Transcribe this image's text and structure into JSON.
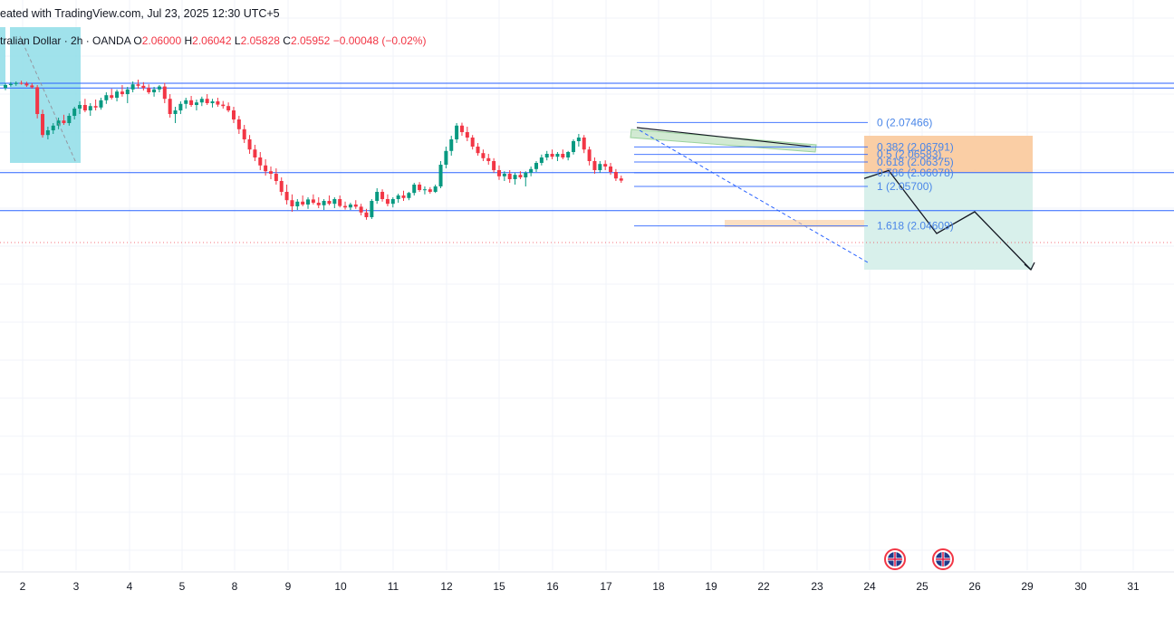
{
  "header": {
    "attribution": "eated with TradingView.com, Jul 23, 2025 12:30 UTC+5"
  },
  "legend": {
    "symbol": "tralian Dollar · 2h · OANDA",
    "open_label": "O",
    "open_value": "2.06000",
    "high_label": "H",
    "high_value": "2.06042",
    "low_label": "L",
    "low_value": "2.05828",
    "close_label": "C",
    "close_value": "2.05952",
    "change": "−0.00048 (−0.02%)"
  },
  "colors": {
    "up": "#089981",
    "down": "#f23645",
    "level_line": "#2962ff",
    "fib_text": "#4a86e8",
    "target_zone": "#d6efea",
    "stop_zone": "#f9c99b",
    "left_box": "#8fdde8"
  },
  "chart_data": {
    "type": "candlestick",
    "x_tick_labels": [
      "2",
      "3",
      "4",
      "5",
      "8",
      "9",
      "10",
      "11",
      "12",
      "15",
      "16",
      "17",
      "18",
      "19",
      "22",
      "23",
      "24",
      "25",
      "26",
      "29",
      "30",
      "31"
    ],
    "horizontal_levels": [
      2.0855,
      2.0842,
      2.0608,
      2.0503
    ],
    "fib_levels": [
      {
        "ratio": "0",
        "price": 2.07466,
        "label": "0 (2.07466)"
      },
      {
        "ratio": "0.382",
        "price": 2.06791,
        "label": "0.382 (2.06791)"
      },
      {
        "ratio": "0.5",
        "price": 2.06583,
        "label": "0.5 (2.06583)"
      },
      {
        "ratio": "0.618",
        "price": 2.06375,
        "label": "0.618 (2.06375)"
      },
      {
        "ratio": "0.786",
        "price": 2.06078,
        "label": "0.786 (2.06078)"
      },
      {
        "ratio": "1",
        "price": 2.057,
        "label": "1 (2.05700)"
      },
      {
        "ratio": "1.618",
        "price": 2.04609,
        "label": "1.618 (2.04609)"
      }
    ],
    "position_tool": {
      "type": "short",
      "entry": 2.0608,
      "stop": 2.071,
      "target": 2.034
    },
    "projection_path": [
      {
        "day": "23",
        "price": 2.0592
      },
      {
        "day": "24",
        "price": 2.0614
      },
      {
        "day": "25",
        "price": 2.044
      },
      {
        "day": "26",
        "price": 2.05
      },
      {
        "day": "29",
        "price": 2.034
      }
    ],
    "event_markers": [
      {
        "day": "24",
        "flag": "UK"
      },
      {
        "day": "25",
        "flag": "UK"
      }
    ],
    "candles": [
      [
        2.0842,
        2.0855,
        2.0836,
        2.085
      ],
      [
        2.085,
        2.0858,
        2.0846,
        2.0853
      ],
      [
        2.0853,
        2.086,
        2.0848,
        2.0856
      ],
      [
        2.0856,
        2.0862,
        2.0851,
        2.0854
      ],
      [
        2.0854,
        2.0859,
        2.0845,
        2.0849
      ],
      [
        2.0849,
        2.0855,
        2.084,
        2.0844
      ],
      [
        2.0844,
        2.085,
        2.0758,
        2.077
      ],
      [
        2.077,
        2.0782,
        2.0705,
        2.0712
      ],
      [
        2.0712,
        2.0735,
        2.07,
        2.0725
      ],
      [
        2.0725,
        2.0745,
        2.0715,
        2.0738
      ],
      [
        2.0738,
        2.076,
        2.0728,
        2.0752
      ],
      [
        2.0752,
        2.0768,
        2.074,
        2.0745
      ],
      [
        2.0745,
        2.0772,
        2.0738,
        2.0765
      ],
      [
        2.0765,
        2.079,
        2.0755,
        2.0785
      ],
      [
        2.0785,
        2.0805,
        2.077,
        2.0795
      ],
      [
        2.0795,
        2.0812,
        2.0775,
        2.078
      ],
      [
        2.078,
        2.08,
        2.0765,
        2.0792
      ],
      [
        2.0792,
        2.081,
        2.078,
        2.0788
      ],
      [
        2.0788,
        2.0815,
        2.0782,
        2.0808
      ],
      [
        2.0808,
        2.083,
        2.0798,
        2.0822
      ],
      [
        2.0822,
        2.084,
        2.081,
        2.0815
      ],
      [
        2.0815,
        2.0838,
        2.0805,
        2.0832
      ],
      [
        2.0832,
        2.085,
        2.0818,
        2.0825
      ],
      [
        2.0825,
        2.0845,
        2.08,
        2.0838
      ],
      [
        2.0838,
        2.086,
        2.083,
        2.0852
      ],
      [
        2.0852,
        2.0865,
        2.084,
        2.0848
      ],
      [
        2.0848,
        2.0858,
        2.0835,
        2.0842
      ],
      [
        2.0842,
        2.0852,
        2.0825,
        2.083
      ],
      [
        2.083,
        2.0845,
        2.0818,
        2.0838
      ],
      [
        2.0838,
        2.085,
        2.083,
        2.0846
      ],
      [
        2.0846,
        2.0856,
        2.08,
        2.0812
      ],
      [
        2.0812,
        2.0825,
        2.076,
        2.077
      ],
      [
        2.077,
        2.079,
        2.0745,
        2.078
      ],
      [
        2.078,
        2.0805,
        2.077,
        2.0798
      ],
      [
        2.0798,
        2.0815,
        2.0785,
        2.0808
      ],
      [
        2.0808,
        2.082,
        2.079,
        2.0795
      ],
      [
        2.0795,
        2.081,
        2.078,
        2.0802
      ],
      [
        2.0802,
        2.0818,
        2.0792,
        2.0812
      ],
      [
        2.0812,
        2.0825,
        2.0795,
        2.08
      ],
      [
        2.08,
        2.0812,
        2.0788,
        2.0805
      ],
      [
        2.0805,
        2.0815,
        2.079,
        2.0796
      ],
      [
        2.0796,
        2.0806,
        2.0785,
        2.0792
      ],
      [
        2.0792,
        2.0802,
        2.0775,
        2.078
      ],
      [
        2.078,
        2.079,
        2.0745,
        2.0755
      ],
      [
        2.0755,
        2.0765,
        2.0715,
        2.0728
      ],
      [
        2.0728,
        2.074,
        2.069,
        2.07
      ],
      [
        2.07,
        2.0712,
        2.066,
        2.0672
      ],
      [
        2.0672,
        2.0685,
        2.064,
        2.065
      ],
      [
        2.065,
        2.0665,
        2.0615,
        2.0628
      ],
      [
        2.0628,
        2.0645,
        2.06,
        2.0612
      ],
      [
        2.0612,
        2.0625,
        2.059,
        2.0605
      ],
      [
        2.0605,
        2.062,
        2.0575,
        2.0585
      ],
      [
        2.0585,
        2.0595,
        2.0545,
        2.0555
      ],
      [
        2.0555,
        2.0575,
        2.052,
        2.0532
      ],
      [
        2.0532,
        2.0548,
        2.05,
        2.0515
      ],
      [
        2.0515,
        2.0535,
        2.0505,
        2.0528
      ],
      [
        2.0528,
        2.0545,
        2.0515,
        2.052
      ],
      [
        2.052,
        2.054,
        2.0508,
        2.0534
      ],
      [
        2.0534,
        2.0548,
        2.052,
        2.0525
      ],
      [
        2.0525,
        2.054,
        2.051,
        2.0518
      ],
      [
        2.0518,
        2.0535,
        2.0505,
        2.053
      ],
      [
        2.053,
        2.0545,
        2.0518,
        2.0522
      ],
      [
        2.0522,
        2.054,
        2.051,
        2.0535
      ],
      [
        2.0535,
        2.0545,
        2.0512,
        2.0516
      ],
      [
        2.0516,
        2.0528,
        2.0506,
        2.0512
      ],
      [
        2.0512,
        2.0525,
        2.0505,
        2.052
      ],
      [
        2.052,
        2.0532,
        2.0508,
        2.0514
      ],
      [
        2.0514,
        2.0522,
        2.049,
        2.0498
      ],
      [
        2.0498,
        2.0508,
        2.0478,
        2.0485
      ],
      [
        2.0485,
        2.0535,
        2.048,
        2.053
      ],
      [
        2.053,
        2.0565,
        2.0522,
        2.0555
      ],
      [
        2.0555,
        2.0562,
        2.0528,
        2.0535
      ],
      [
        2.0535,
        2.0548,
        2.0515,
        2.0522
      ],
      [
        2.0522,
        2.054,
        2.0512,
        2.0535
      ],
      [
        2.0535,
        2.055,
        2.0525,
        2.0545
      ],
      [
        2.0545,
        2.0558,
        2.053,
        2.0538
      ],
      [
        2.0538,
        2.0555,
        2.0532,
        2.0552
      ],
      [
        2.0552,
        2.058,
        2.0545,
        2.0575
      ],
      [
        2.0575,
        2.0582,
        2.0555,
        2.056
      ],
      [
        2.056,
        2.057,
        2.0548,
        2.0562
      ],
      [
        2.0562,
        2.0568,
        2.055,
        2.0555
      ],
      [
        2.0555,
        2.0575,
        2.0552,
        2.057
      ],
      [
        2.057,
        2.064,
        2.0565,
        2.063
      ],
      [
        2.063,
        2.068,
        2.062,
        2.0668
      ],
      [
        2.0668,
        2.071,
        2.0655,
        2.07
      ],
      [
        2.07,
        2.0745,
        2.069,
        2.0738
      ],
      [
        2.0738,
        2.0746,
        2.071,
        2.072
      ],
      [
        2.072,
        2.0735,
        2.0695,
        2.0705
      ],
      [
        2.0705,
        2.0712,
        2.0672,
        2.068
      ],
      [
        2.068,
        2.069,
        2.0655,
        2.0662
      ],
      [
        2.0662,
        2.0672,
        2.064,
        2.0648
      ],
      [
        2.0648,
        2.066,
        2.063,
        2.064
      ],
      [
        2.064,
        2.0648,
        2.0608,
        2.0615
      ],
      [
        2.0615,
        2.0628,
        2.0588,
        2.0598
      ],
      [
        2.0598,
        2.0612,
        2.0585,
        2.0605
      ],
      [
        2.0605,
        2.0615,
        2.058,
        2.059
      ],
      [
        2.059,
        2.0608,
        2.0575,
        2.0602
      ],
      [
        2.0602,
        2.0612,
        2.059,
        2.0595
      ],
      [
        2.0595,
        2.0612,
        2.057,
        2.0608
      ],
      [
        2.0608,
        2.0625,
        2.0598,
        2.0618
      ],
      [
        2.0618,
        2.064,
        2.061,
        2.0635
      ],
      [
        2.0635,
        2.0658,
        2.0628,
        2.065
      ],
      [
        2.065,
        2.0668,
        2.0642,
        2.066
      ],
      [
        2.066,
        2.0672,
        2.0645,
        2.0652
      ],
      [
        2.0652,
        2.0665,
        2.064,
        2.066
      ],
      [
        2.066,
        2.0672,
        2.0645,
        2.065
      ],
      [
        2.065,
        2.0668,
        2.0642,
        2.0665
      ],
      [
        2.0665,
        2.07,
        2.0658,
        2.0695
      ],
      [
        2.0695,
        2.0715,
        2.068,
        2.0705
      ],
      [
        2.0705,
        2.0712,
        2.0662,
        2.0672
      ],
      [
        2.0672,
        2.068,
        2.0628,
        2.064
      ],
      [
        2.064,
        2.065,
        2.0605,
        2.0615
      ],
      [
        2.0615,
        2.064,
        2.0608,
        2.0632
      ],
      [
        2.0632,
        2.0642,
        2.0615,
        2.0625
      ],
      [
        2.0625,
        2.0635,
        2.0602,
        2.061
      ],
      [
        2.061,
        2.0618,
        2.0585,
        2.0592
      ],
      [
        2.0592,
        2.06,
        2.058,
        2.0586
      ]
    ]
  }
}
